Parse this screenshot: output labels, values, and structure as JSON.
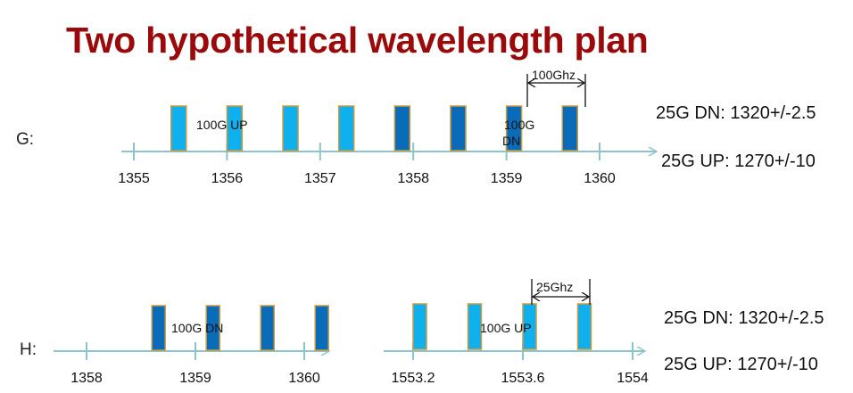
{
  "title": "Two hypothetical wavelength plan",
  "colors": {
    "title": "#9b0a0a",
    "axis": "#8cc4cc",
    "bar_light": "#10b0ee",
    "bar_dark": "#0a6cb8",
    "bar_border": "#c79a40"
  },
  "plan_g": {
    "label": "G:",
    "ticks": [
      "1355",
      "1356",
      "1357",
      "1358",
      "1359",
      "1360"
    ],
    "bars": [
      {
        "channel": 1355.4,
        "shade": "light"
      },
      {
        "channel": 1356.0,
        "shade": "light"
      },
      {
        "channel": 1356.6,
        "shade": "light"
      },
      {
        "channel": 1357.2,
        "shade": "light"
      },
      {
        "channel": 1357.8,
        "shade": "dark"
      },
      {
        "channel": 1358.4,
        "shade": "dark"
      },
      {
        "channel": 1359.0,
        "shade": "dark"
      },
      {
        "channel": 1359.6,
        "shade": "dark"
      }
    ],
    "up_label": "100G UP",
    "dn_label_line1": "100G",
    "dn_label_line2": "DN",
    "spacing_label": "100Ghz",
    "spec_dn": "25G DN: 1320+/-2.5",
    "spec_up": "25G UP: 1270+/-10"
  },
  "plan_h": {
    "label": "H:",
    "left_axis": {
      "ticks": [
        "1358",
        "1359",
        "1360"
      ],
      "bars": [
        {
          "channel": 1358.6,
          "shade": "dark"
        },
        {
          "channel": 1359.1,
          "shade": "dark"
        },
        {
          "channel": 1359.6,
          "shade": "dark"
        },
        {
          "channel": 1360.1,
          "shade": "dark"
        }
      ],
      "label": "100G DN"
    },
    "right_axis": {
      "ticks": [
        "1553.2",
        "1553.6",
        "1554"
      ],
      "bars": [
        {
          "channel": 1553.2,
          "shade": "light"
        },
        {
          "channel": 1553.4,
          "shade": "light"
        },
        {
          "channel": 1553.6,
          "shade": "light"
        },
        {
          "channel": 1553.8,
          "shade": "light"
        }
      ],
      "label": "100G UP"
    },
    "spacing_label": "25Ghz",
    "spec_dn": "25G DN: 1320+/-2.5",
    "spec_up": "25G UP: 1270+/-10"
  }
}
